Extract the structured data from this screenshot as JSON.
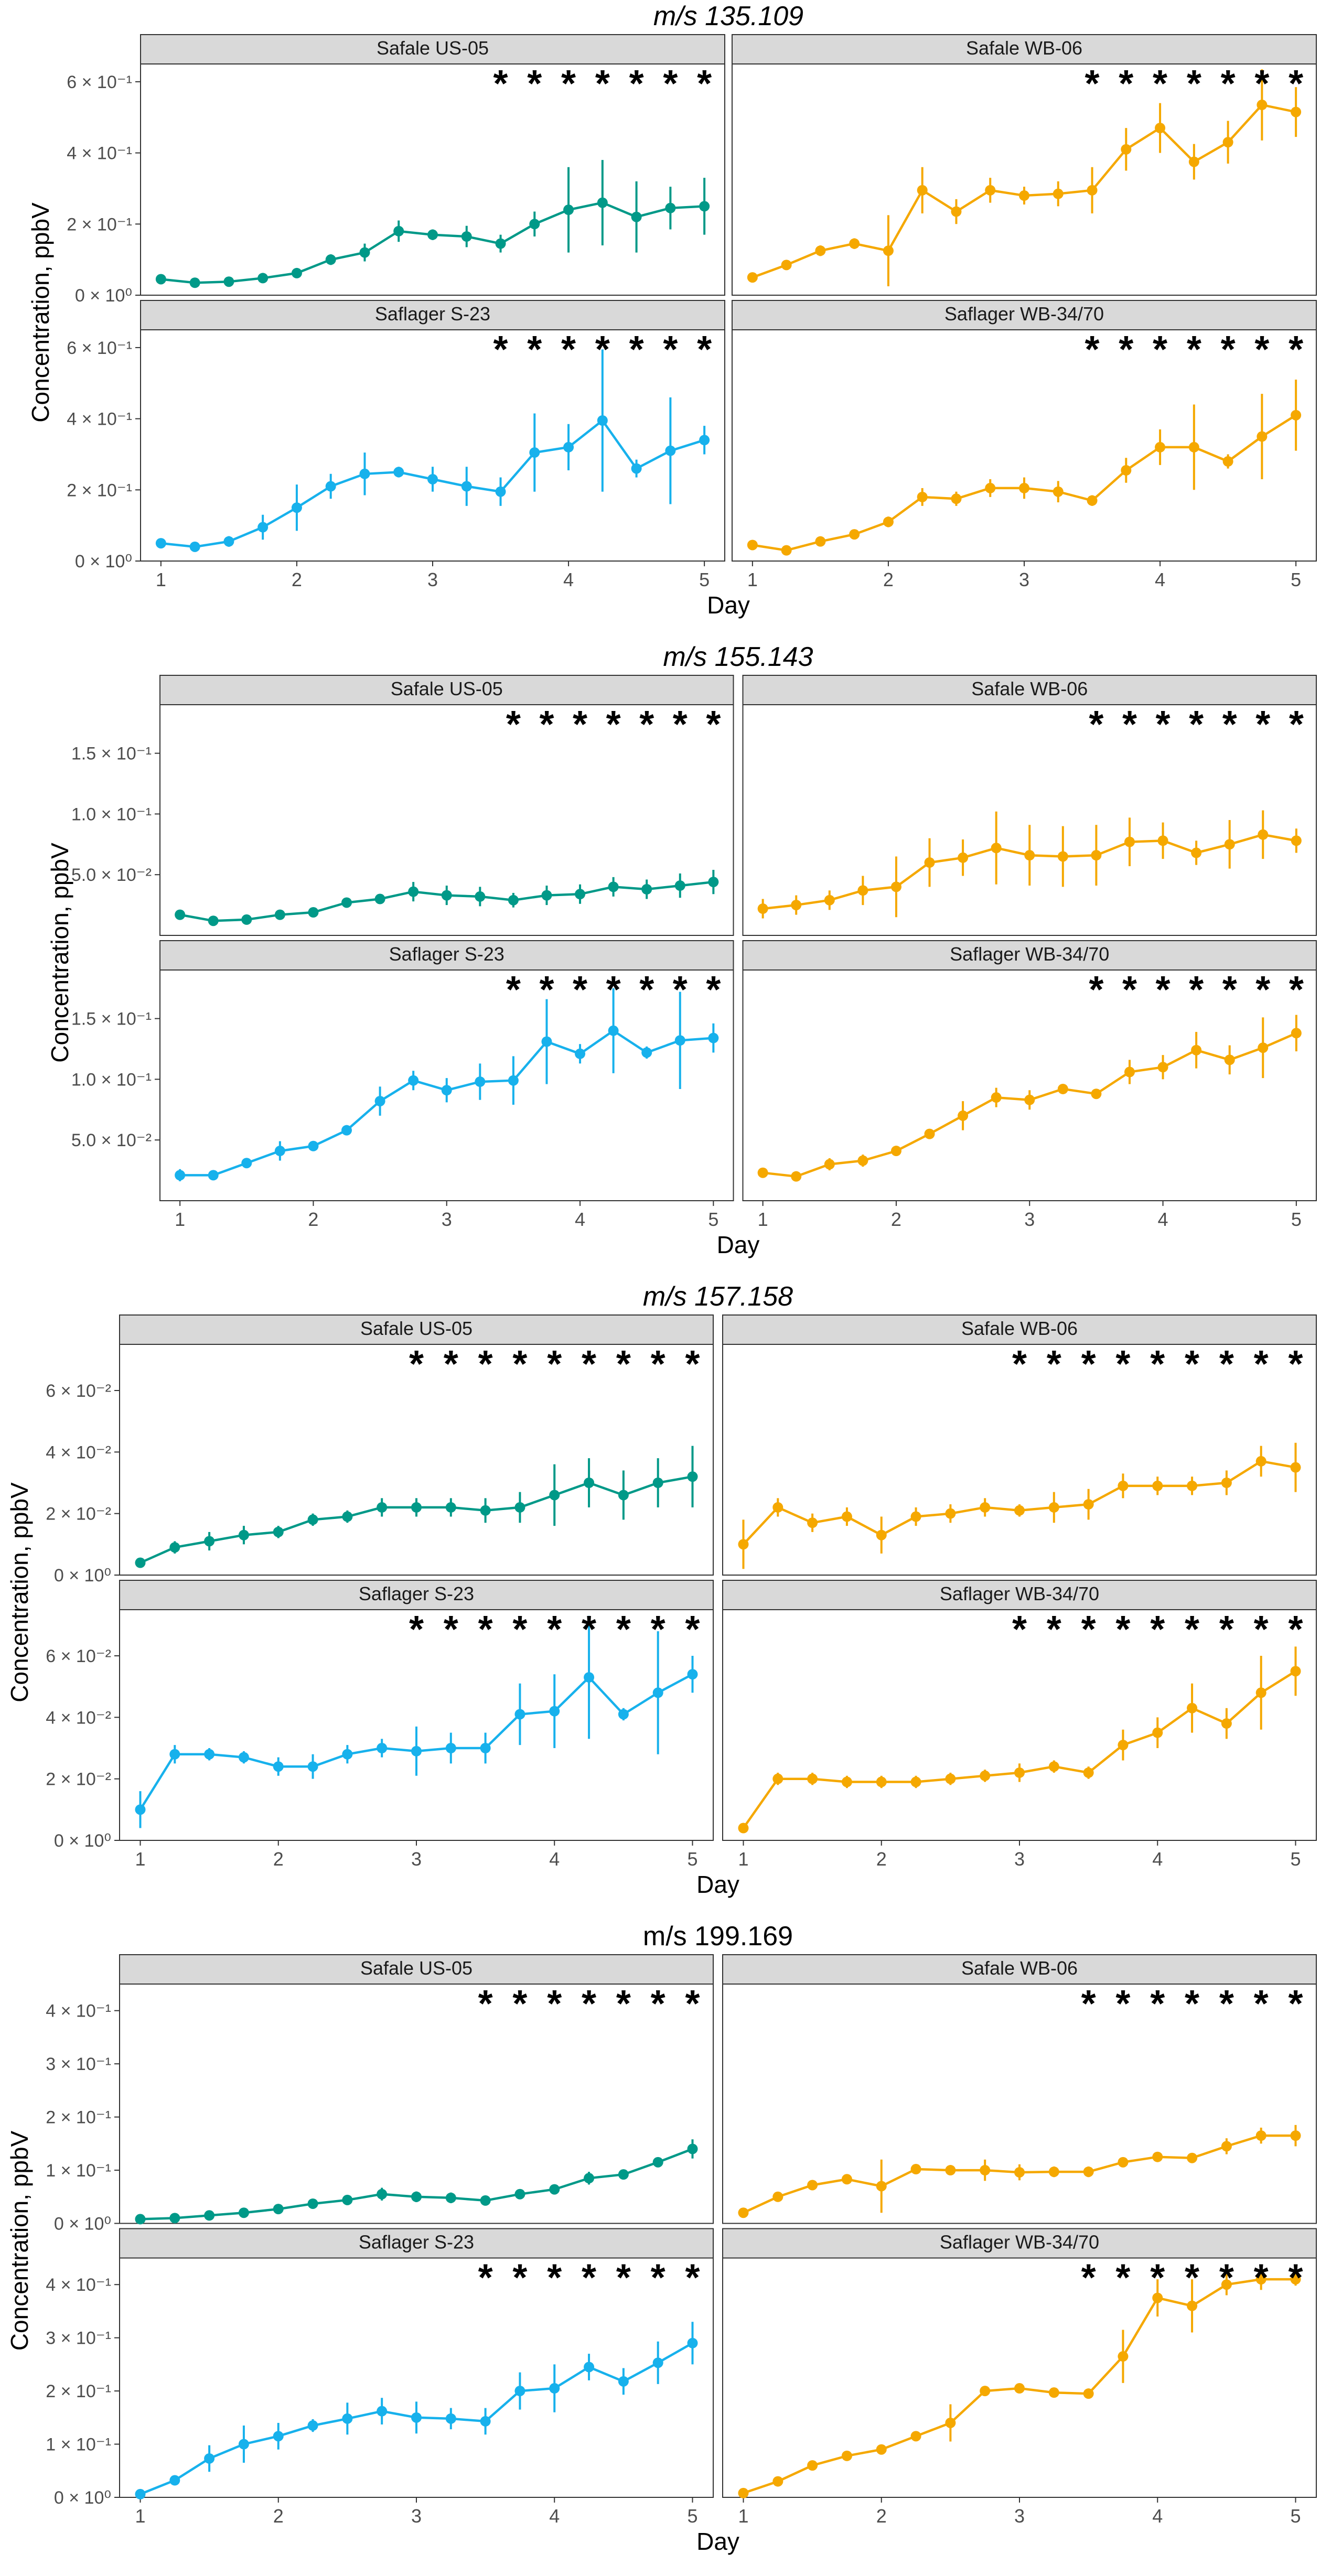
{
  "colors": {
    "Safale US-05": "#009988",
    "Safale WB-06": "#f5a800",
    "Saflager S-23": "#17b1ec",
    "Saflager WB-34/70": "#f5a800"
  },
  "chart_data": [
    {
      "type": "line",
      "title": "m/s 135.109",
      "title_italic": true,
      "xlabel": "Day",
      "ylabel": "Concentration, ppbV",
      "x_ticks": [
        "1",
        "2",
        "3",
        "4",
        "5"
      ],
      "ylim": [
        0,
        0.65
      ],
      "y_ticks": [
        {
          "value": 0,
          "label": "0 × 10⁰"
        },
        {
          "value": 0.2,
          "label": "2 × 10⁻¹"
        },
        {
          "value": 0.4,
          "label": "4 × 10⁻¹"
        },
        {
          "value": 0.6,
          "label": "6 × 10⁻¹"
        }
      ],
      "x": [
        1,
        1.25,
        1.5,
        1.75,
        2,
        2.25,
        2.5,
        2.75,
        3,
        3.25,
        3.5,
        3.75,
        4,
        4.25,
        4.5,
        4.75,
        5
      ],
      "series": [
        {
          "name": "Safale US-05",
          "values": [
            0.045,
            0.035,
            0.038,
            0.048,
            0.062,
            0.1,
            0.12,
            0.18,
            0.17,
            0.165,
            0.145,
            0.2,
            0.24,
            0.26,
            0.22,
            0.245,
            0.25
          ],
          "err": [
            0.01,
            0.008,
            0.008,
            0.008,
            0.01,
            0.015,
            0.025,
            0.03,
            0.015,
            0.03,
            0.025,
            0.035,
            0.12,
            0.12,
            0.1,
            0.06,
            0.08
          ],
          "significance": [
            3.5,
            3.75,
            4,
            4.25,
            4.5,
            4.75,
            5
          ]
        },
        {
          "name": "Safale WB-06",
          "values": [
            0.05,
            0.085,
            0.125,
            0.145,
            0.125,
            0.295,
            0.235,
            0.295,
            0.28,
            0.285,
            0.295,
            0.41,
            0.47,
            0.375,
            0.43,
            0.535,
            0.515
          ],
          "err": [
            0.01,
            0.01,
            0.015,
            0.015,
            0.1,
            0.065,
            0.035,
            0.035,
            0.025,
            0.035,
            0.065,
            0.06,
            0.07,
            0.05,
            0.06,
            0.1,
            0.07
          ],
          "significance": [
            3.5,
            3.75,
            4,
            4.25,
            4.5,
            4.75,
            5
          ]
        },
        {
          "name": "Saflager S-23",
          "values": [
            0.05,
            0.04,
            0.055,
            0.095,
            0.15,
            0.21,
            0.245,
            0.25,
            0.23,
            0.21,
            0.195,
            0.305,
            0.32,
            0.395,
            0.26,
            0.31,
            0.34
          ],
          "err": [
            0.008,
            0.008,
            0.015,
            0.035,
            0.065,
            0.035,
            0.06,
            0.015,
            0.035,
            0.055,
            0.04,
            0.11,
            0.065,
            0.2,
            0.025,
            0.15,
            0.04
          ],
          "significance": [
            3.5,
            3.75,
            4,
            4.25,
            4.5,
            4.75,
            5
          ]
        },
        {
          "name": "Saflager WB-34/70",
          "values": [
            0.045,
            0.03,
            0.055,
            0.075,
            0.11,
            0.18,
            0.175,
            0.205,
            0.205,
            0.195,
            0.17,
            0.255,
            0.32,
            0.32,
            0.28,
            0.35,
            0.41
          ],
          "err": [
            0.008,
            0.008,
            0.01,
            0.01,
            0.015,
            0.025,
            0.02,
            0.025,
            0.03,
            0.03,
            0.015,
            0.035,
            0.05,
            0.12,
            0.02,
            0.12,
            0.1
          ],
          "significance": [
            3.5,
            3.75,
            4,
            4.25,
            4.5,
            4.75,
            5
          ]
        }
      ]
    },
    {
      "type": "line",
      "title": "m/s 155.143",
      "title_italic": true,
      "xlabel": "Day",
      "ylabel": "Concentration, ppbV",
      "x_ticks": [
        "1",
        "2",
        "3",
        "4",
        "5"
      ],
      "ylim": [
        0,
        0.19
      ],
      "y_ticks": [
        {
          "value": 0.05,
          "label": "5.0 × 10⁻²"
        },
        {
          "value": 0.1,
          "label": "1.0 × 10⁻¹"
        },
        {
          "value": 0.15,
          "label": "1.5 × 10⁻¹"
        }
      ],
      "x": [
        1,
        1.25,
        1.5,
        1.75,
        2,
        2.25,
        2.5,
        2.75,
        3,
        3.25,
        3.5,
        3.75,
        4,
        4.25,
        4.5,
        4.75,
        5
      ],
      "series": [
        {
          "name": "Safale US-05",
          "values": [
            0.017,
            0.012,
            0.013,
            0.017,
            0.019,
            0.027,
            0.03,
            0.036,
            0.033,
            0.032,
            0.029,
            0.033,
            0.034,
            0.04,
            0.038,
            0.041,
            0.044
          ],
          "err": [
            0.003,
            0.003,
            0.003,
            0.003,
            0.003,
            0.004,
            0.004,
            0.008,
            0.008,
            0.008,
            0.006,
            0.008,
            0.008,
            0.008,
            0.008,
            0.01,
            0.01
          ],
          "significance": [
            3.5,
            3.75,
            4,
            4.25,
            4.5,
            4.75,
            5
          ]
        },
        {
          "name": "Safale WB-06",
          "values": [
            0.022,
            0.025,
            0.029,
            0.037,
            0.04,
            0.06,
            0.064,
            0.072,
            0.066,
            0.065,
            0.066,
            0.077,
            0.078,
            0.068,
            0.075,
            0.083,
            0.078
          ],
          "err": [
            0.008,
            0.008,
            0.008,
            0.012,
            0.025,
            0.02,
            0.015,
            0.03,
            0.025,
            0.025,
            0.025,
            0.02,
            0.015,
            0.01,
            0.02,
            0.02,
            0.01
          ],
          "significance": [
            3.5,
            3.75,
            4,
            4.25,
            4.5,
            4.75,
            5
          ]
        },
        {
          "name": "Saflager S-23",
          "values": [
            0.021,
            0.021,
            0.031,
            0.041,
            0.045,
            0.058,
            0.082,
            0.099,
            0.091,
            0.098,
            0.099,
            0.131,
            0.121,
            0.14,
            0.122,
            0.132,
            0.134
          ],
          "err": [
            0.005,
            0.004,
            0.004,
            0.008,
            0.004,
            0.003,
            0.012,
            0.008,
            0.01,
            0.015,
            0.02,
            0.035,
            0.008,
            0.035,
            0.005,
            0.04,
            0.012
          ],
          "significance": [
            3.5,
            3.75,
            4,
            4.25,
            4.5,
            4.75,
            5
          ]
        },
        {
          "name": "Saflager WB-34/70",
          "values": [
            0.023,
            0.02,
            0.03,
            0.033,
            0.041,
            0.055,
            0.07,
            0.085,
            0.083,
            0.092,
            0.088,
            0.106,
            0.11,
            0.124,
            0.116,
            0.126,
            0.138
          ],
          "err": [
            0.003,
            0.003,
            0.005,
            0.005,
            0.004,
            0.004,
            0.012,
            0.008,
            0.008,
            0.004,
            0.004,
            0.01,
            0.01,
            0.015,
            0.012,
            0.025,
            0.015
          ],
          "significance": [
            3.5,
            3.75,
            4,
            4.25,
            4.5,
            4.75,
            5
          ]
        }
      ]
    },
    {
      "type": "line",
      "title": "m/s 157.158",
      "title_italic": true,
      "xlabel": "Day",
      "ylabel": "Concentration, ppbV",
      "x_ticks": [
        "1",
        "2",
        "3",
        "4",
        "5"
      ],
      "ylim": [
        0,
        0.075
      ],
      "y_ticks": [
        {
          "value": 0,
          "label": "0 × 10⁰"
        },
        {
          "value": 0.02,
          "label": "2 × 10⁻²"
        },
        {
          "value": 0.04,
          "label": "4 × 10⁻²"
        },
        {
          "value": 0.06,
          "label": "6 × 10⁻²"
        }
      ],
      "x": [
        1,
        1.25,
        1.5,
        1.75,
        2,
        2.25,
        2.5,
        2.75,
        3,
        3.25,
        3.5,
        3.75,
        4,
        4.25,
        4.5,
        4.75,
        5
      ],
      "series": [
        {
          "name": "Safale US-05",
          "values": [
            0.004,
            0.009,
            0.011,
            0.013,
            0.014,
            0.018,
            0.019,
            0.022,
            0.022,
            0.022,
            0.021,
            0.022,
            0.026,
            0.03,
            0.026,
            0.03,
            0.032
          ],
          "err": [
            0.001,
            0.002,
            0.003,
            0.003,
            0.002,
            0.002,
            0.002,
            0.003,
            0.003,
            0.003,
            0.004,
            0.005,
            0.01,
            0.008,
            0.008,
            0.008,
            0.01
          ],
          "significance": [
            3,
            3.25,
            3.5,
            3.75,
            4,
            4.25,
            4.5,
            4.75,
            5
          ]
        },
        {
          "name": "Safale WB-06",
          "values": [
            0.01,
            0.022,
            0.017,
            0.019,
            0.013,
            0.019,
            0.02,
            0.022,
            0.021,
            0.022,
            0.023,
            0.029,
            0.029,
            0.029,
            0.03,
            0.037,
            0.035
          ],
          "err": [
            0.008,
            0.003,
            0.003,
            0.003,
            0.006,
            0.003,
            0.003,
            0.003,
            0.002,
            0.005,
            0.005,
            0.004,
            0.003,
            0.003,
            0.004,
            0.005,
            0.008
          ],
          "significance": [
            3,
            3.25,
            3.5,
            3.75,
            4,
            4.25,
            4.5,
            4.75,
            5
          ]
        },
        {
          "name": "Saflager S-23",
          "values": [
            0.01,
            0.028,
            0.028,
            0.027,
            0.024,
            0.024,
            0.028,
            0.03,
            0.029,
            0.03,
            0.03,
            0.041,
            0.042,
            0.053,
            0.041,
            0.048,
            0.054
          ],
          "err": [
            0.006,
            0.003,
            0.002,
            0.002,
            0.003,
            0.004,
            0.003,
            0.003,
            0.008,
            0.005,
            0.005,
            0.01,
            0.012,
            0.02,
            0.002,
            0.02,
            0.006
          ],
          "significance": [
            3,
            3.25,
            3.5,
            3.75,
            4,
            4.25,
            4.5,
            4.75,
            5
          ]
        },
        {
          "name": "Saflager WB-34/70",
          "values": [
            0.004,
            0.02,
            0.02,
            0.019,
            0.019,
            0.019,
            0.02,
            0.021,
            0.022,
            0.024,
            0.022,
            0.031,
            0.035,
            0.043,
            0.038,
            0.048,
            0.055
          ],
          "err": [
            0.001,
            0.002,
            0.002,
            0.002,
            0.002,
            0.002,
            0.002,
            0.002,
            0.003,
            0.002,
            0.002,
            0.005,
            0.005,
            0.008,
            0.005,
            0.012,
            0.008
          ],
          "significance": [
            3,
            3.25,
            3.5,
            3.75,
            4,
            4.25,
            4.5,
            4.75,
            5
          ]
        }
      ]
    },
    {
      "type": "line",
      "title": "m/s 199.169",
      "title_italic": false,
      "xlabel": "Day",
      "ylabel": "Concentration, ppbV",
      "x_ticks": [
        "1",
        "2",
        "3",
        "4",
        "5"
      ],
      "ylim": [
        0,
        0.45
      ],
      "y_ticks": [
        {
          "value": 0,
          "label": "0 × 10⁰"
        },
        {
          "value": 0.1,
          "label": "1 × 10⁻¹"
        },
        {
          "value": 0.2,
          "label": "2 × 10⁻¹"
        },
        {
          "value": 0.3,
          "label": "3 × 10⁻¹"
        },
        {
          "value": 0.4,
          "label": "4 × 10⁻¹"
        }
      ],
      "x": [
        1,
        1.25,
        1.5,
        1.75,
        2,
        2.25,
        2.5,
        2.75,
        3,
        3.25,
        3.5,
        3.75,
        4,
        4.25,
        4.5,
        4.75,
        5
      ],
      "series": [
        {
          "name": "Safale US-05",
          "values": [
            0.008,
            0.01,
            0.015,
            0.02,
            0.027,
            0.037,
            0.044,
            0.055,
            0.05,
            0.048,
            0.043,
            0.055,
            0.064,
            0.085,
            0.092,
            0.115,
            0.14
          ],
          "err": [
            0.003,
            0.003,
            0.003,
            0.003,
            0.004,
            0.004,
            0.006,
            0.012,
            0.01,
            0.01,
            0.006,
            0.008,
            0.008,
            0.012,
            0.008,
            0.008,
            0.018
          ],
          "significance": [
            3.5,
            3.75,
            4,
            4.25,
            4.5,
            4.75,
            5
          ]
        },
        {
          "name": "Safale WB-06",
          "values": [
            0.02,
            0.05,
            0.072,
            0.083,
            0.07,
            0.102,
            0.1,
            0.1,
            0.096,
            0.097,
            0.097,
            0.115,
            0.125,
            0.123,
            0.145,
            0.165,
            0.165
          ],
          "err": [
            0.004,
            0.005,
            0.005,
            0.006,
            0.05,
            0.008,
            0.008,
            0.02,
            0.015,
            0.01,
            0.01,
            0.006,
            0.008,
            0.006,
            0.015,
            0.015,
            0.02
          ],
          "significance": [
            3.5,
            3.75,
            4,
            4.25,
            4.5,
            4.75,
            5
          ]
        },
        {
          "name": "Saflager S-23",
          "values": [
            0.006,
            0.032,
            0.073,
            0.1,
            0.115,
            0.135,
            0.148,
            0.162,
            0.15,
            0.148,
            0.143,
            0.2,
            0.205,
            0.245,
            0.218,
            0.253,
            0.29
          ],
          "err": [
            0.004,
            0.006,
            0.025,
            0.035,
            0.025,
            0.012,
            0.03,
            0.025,
            0.03,
            0.02,
            0.025,
            0.035,
            0.045,
            0.025,
            0.025,
            0.04,
            0.04
          ],
          "significance": [
            3.5,
            3.75,
            4,
            4.25,
            4.5,
            4.75,
            5
          ]
        },
        {
          "name": "Saflager WB-34/70",
          "values": [
            0.008,
            0.03,
            0.06,
            0.078,
            0.09,
            0.115,
            0.14,
            0.2,
            0.205,
            0.197,
            0.195,
            0.265,
            0.375,
            0.36,
            0.4,
            0.41,
            0.41
          ],
          "err": [
            0.003,
            0.004,
            0.004,
            0.004,
            0.006,
            0.008,
            0.035,
            0.008,
            0.008,
            0.006,
            0.008,
            0.05,
            0.035,
            0.05,
            0.02,
            0.02,
            0.012
          ],
          "significance": [
            3.5,
            3.75,
            4,
            4.25,
            4.5,
            4.75,
            5
          ]
        }
      ]
    }
  ]
}
